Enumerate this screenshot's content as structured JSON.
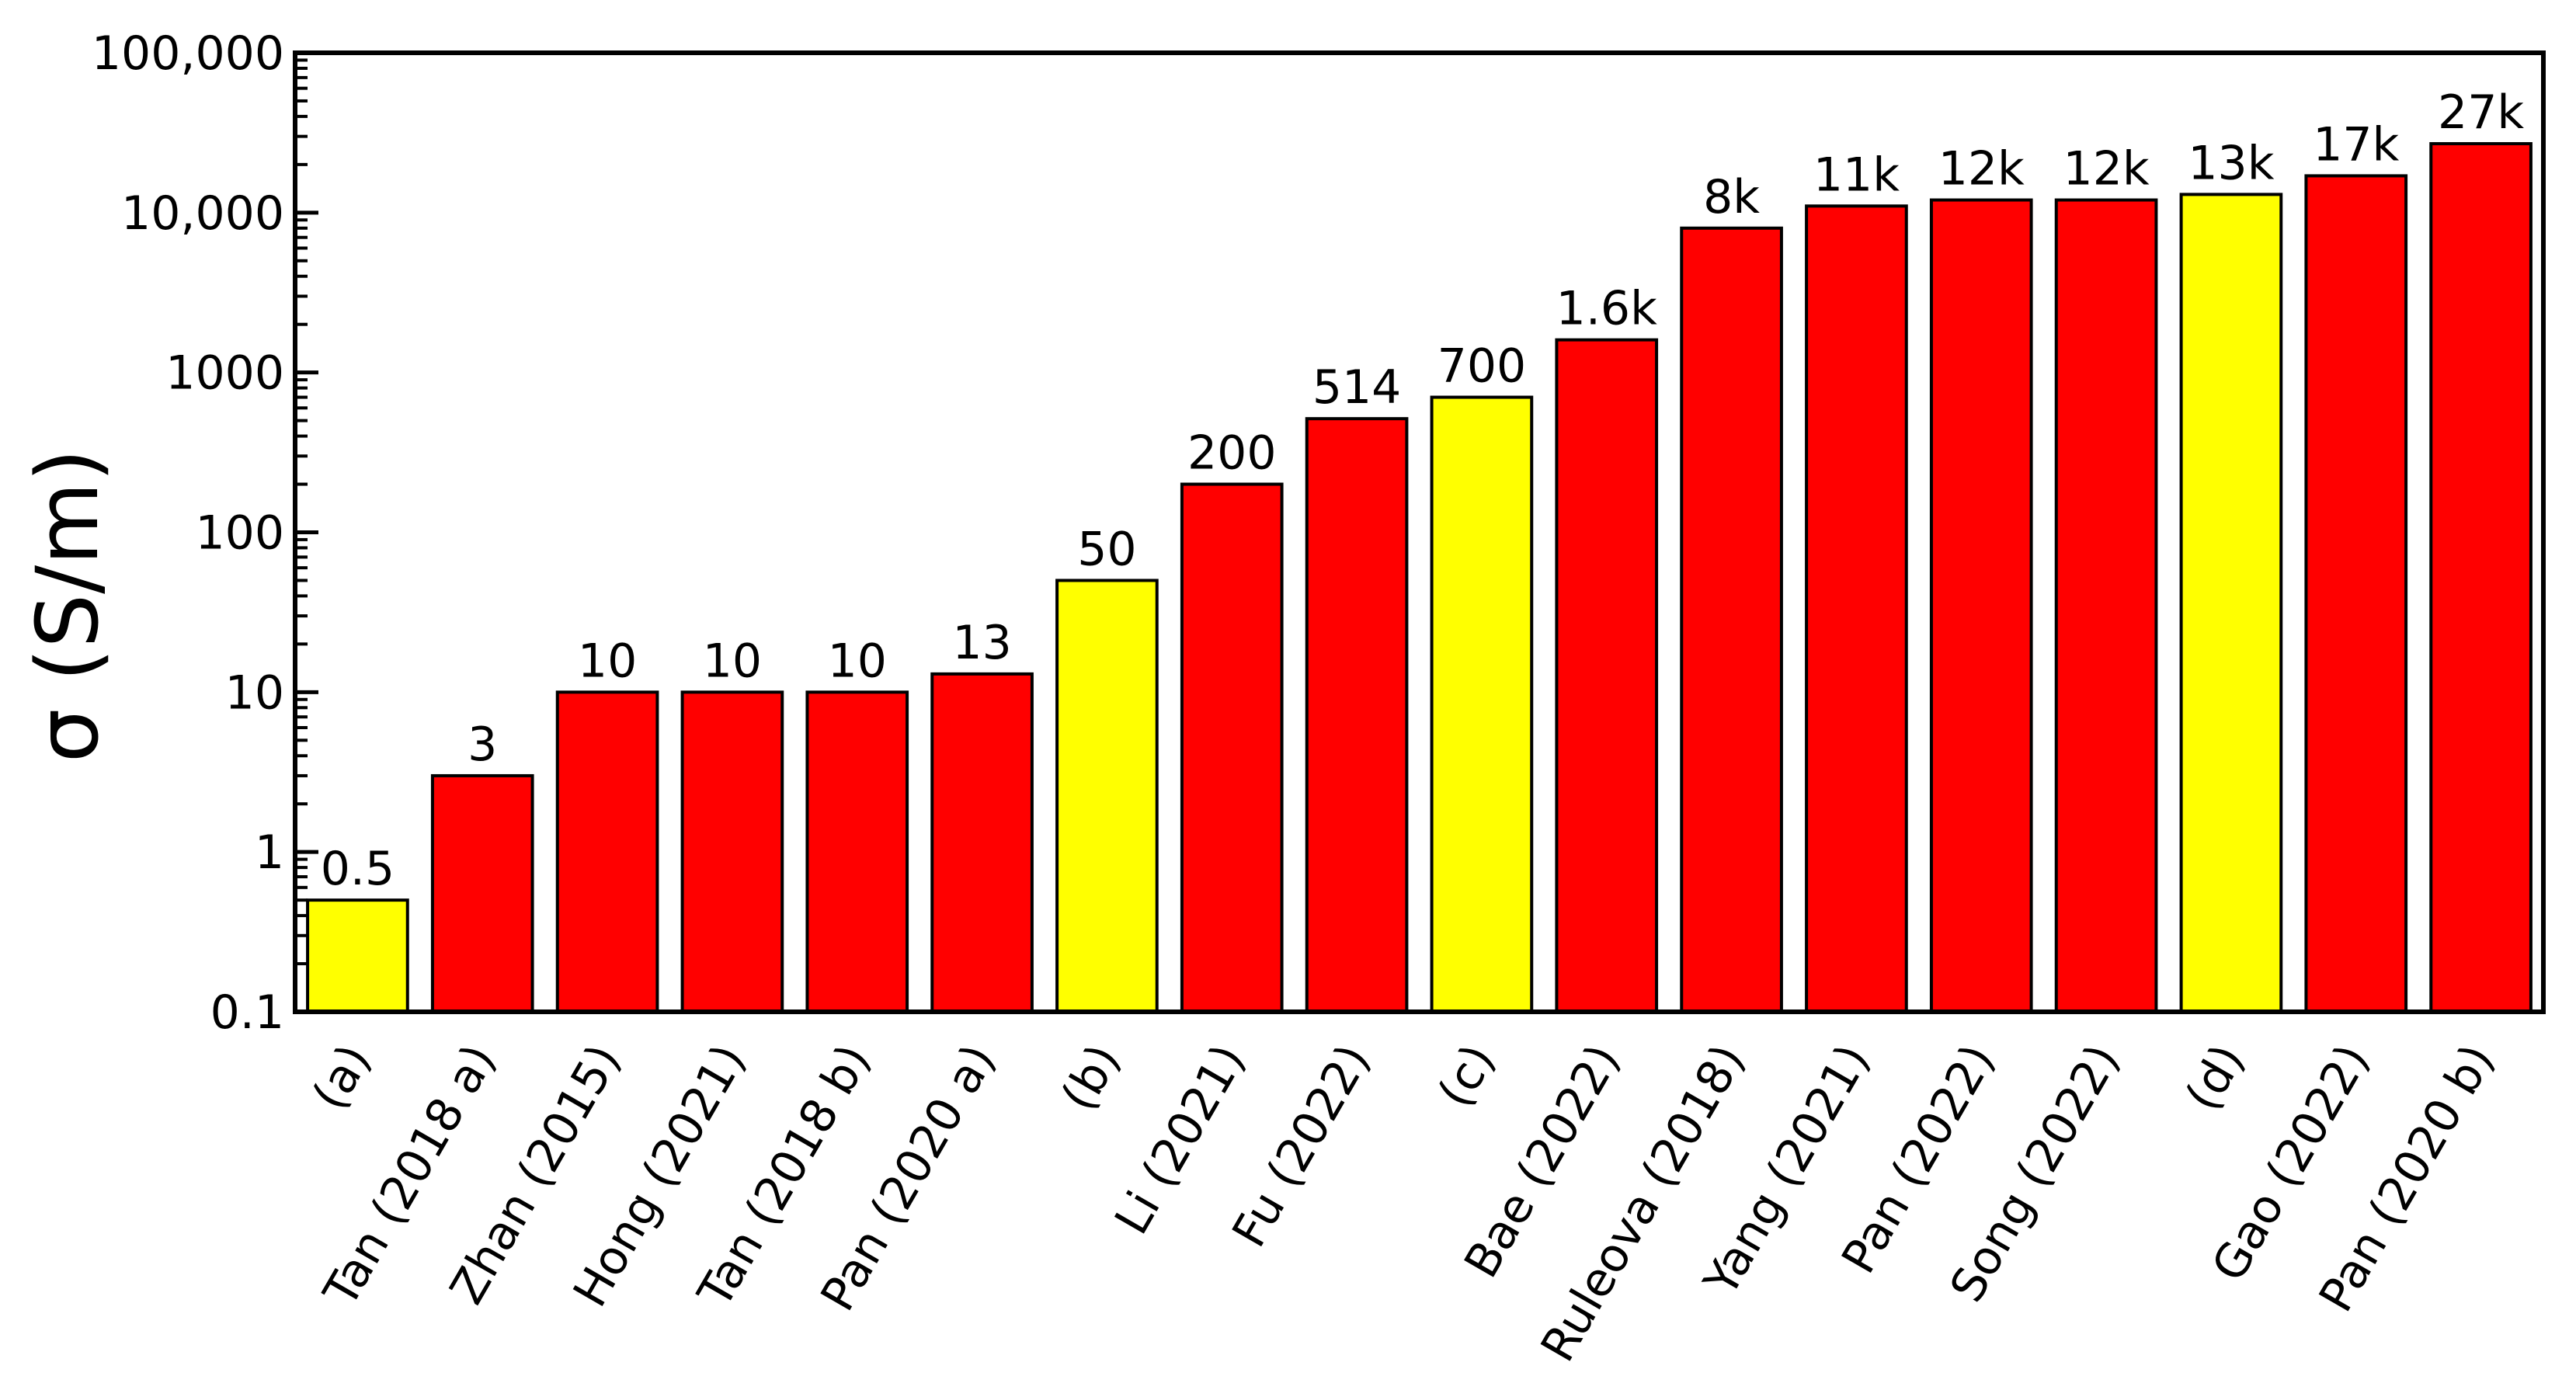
{
  "chart_data": {
    "type": "bar",
    "ylabel": "σ (S/m)",
    "yscale": "log",
    "ylim": [
      0.1,
      100000
    ],
    "yticks": [
      {
        "value": 0.1,
        "label": "0.1"
      },
      {
        "value": 1,
        "label": "1"
      },
      {
        "value": 10,
        "label": "10"
      },
      {
        "value": 100,
        "label": "100"
      },
      {
        "value": 1000,
        "label": "1000"
      },
      {
        "value": 10000,
        "label": "10,000"
      },
      {
        "value": 100000,
        "label": "100,000"
      }
    ],
    "categories": [
      "(a)",
      "Tan (2018 a)",
      "Zhan (2015)",
      "Hong (2021)",
      "Tan (2018 b)",
      "Pan (2020 a)",
      "(b)",
      "Li (2021)",
      "Fu (2022)",
      "(c)",
      "Bae (2022)",
      "Ruleova (2018)",
      "Yang (2021)",
      "Pan (2022)",
      "Song (2022)",
      "(d)",
      "Gao (2022)",
      "Pan (2020 b)"
    ],
    "values": [
      0.5,
      3,
      10,
      10,
      10,
      13,
      50,
      200,
      514,
      700,
      1600,
      8000,
      11000,
      12000,
      12000,
      13000,
      17000,
      27000
    ],
    "data_labels": [
      "0.5",
      "3",
      "10",
      "10",
      "10",
      "13",
      "50",
      "200",
      "514",
      "700",
      "1.6k",
      "8k",
      "11k",
      "12k",
      "12k",
      "13k",
      "17k",
      "27k"
    ],
    "bar_colors": [
      "#FFFF00",
      "#FF0000",
      "#FF0000",
      "#FF0000",
      "#FF0000",
      "#FF0000",
      "#FFFF00",
      "#FF0000",
      "#FF0000",
      "#FFFF00",
      "#FF0000",
      "#FF0000",
      "#FF0000",
      "#FF0000",
      "#FF0000",
      "#FFFF00",
      "#FF0000",
      "#FF0000"
    ],
    "bar_outline": "#000000",
    "grid": false
  }
}
